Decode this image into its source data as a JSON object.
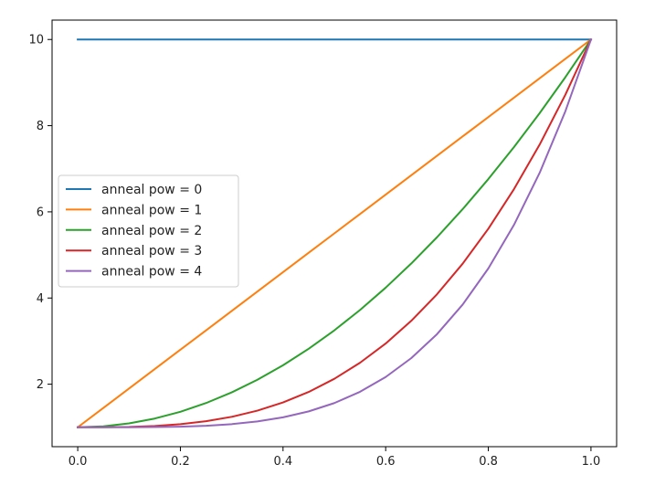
{
  "chart_data": {
    "type": "line",
    "title": "",
    "xlabel": "",
    "ylabel": "",
    "xlim": [
      -0.05,
      1.05
    ],
    "ylim": [
      0.55,
      10.45
    ],
    "xticks": [
      0.0,
      0.2,
      0.4,
      0.6,
      0.8,
      1.0
    ],
    "xtick_labels": [
      "0.0",
      "0.2",
      "0.4",
      "0.6",
      "0.8",
      "1.0"
    ],
    "yticks": [
      2,
      4,
      6,
      8,
      10
    ],
    "ytick_labels": [
      "2",
      "4",
      "6",
      "8",
      "10"
    ],
    "grid": false,
    "legend_position": "center-left",
    "x": [
      0.0,
      0.05,
      0.1,
      0.15,
      0.2,
      0.25,
      0.3,
      0.35,
      0.4,
      0.45,
      0.5,
      0.55,
      0.6,
      0.65,
      0.7,
      0.75,
      0.8,
      0.85,
      0.9,
      0.95,
      1.0
    ],
    "series": [
      {
        "name": "anneal pow = 0",
        "color": "#1f77b4",
        "values": [
          10,
          10,
          10,
          10,
          10,
          10,
          10,
          10,
          10,
          10,
          10,
          10,
          10,
          10,
          10,
          10,
          10,
          10,
          10,
          10,
          10
        ]
      },
      {
        "name": "anneal pow = 1",
        "color": "#ff7f0e",
        "values": [
          1.0,
          1.45,
          1.9,
          2.35,
          2.8,
          3.25,
          3.7,
          4.15,
          4.6,
          5.05,
          5.5,
          5.95,
          6.4,
          6.85,
          7.3,
          7.75,
          8.2,
          8.65,
          9.1,
          9.55,
          10.0
        ]
      },
      {
        "name": "anneal pow = 2",
        "color": "#2ca02c",
        "values": [
          1.0,
          1.0225,
          1.09,
          1.2025,
          1.36,
          1.5625,
          1.81,
          2.1025,
          2.44,
          2.8225,
          3.25,
          3.7225,
          4.24,
          4.8025,
          5.41,
          6.0625,
          6.76,
          7.5025,
          8.29,
          9.1225,
          10.0
        ]
      },
      {
        "name": "anneal pow = 3",
        "color": "#d62728",
        "values": [
          1.0,
          1.0011,
          1.009,
          1.0304,
          1.072,
          1.1406,
          1.243,
          1.3859,
          1.576,
          1.8201,
          2.125,
          2.4975,
          2.944,
          3.4719,
          4.087,
          4.7969,
          5.608,
          6.5271,
          7.561,
          8.7164,
          10.0
        ]
      },
      {
        "name": "anneal pow = 4",
        "color": "#9467bd",
        "values": [
          1.0,
          1.0001,
          1.0009,
          1.0046,
          1.0144,
          1.0352,
          1.0729,
          1.1351,
          1.2304,
          1.369,
          1.5625,
          1.8236,
          2.1664,
          2.6064,
          3.1609,
          3.8477,
          4.6864,
          5.698,
          6.9049,
          8.331,
          10.0
        ]
      }
    ]
  }
}
